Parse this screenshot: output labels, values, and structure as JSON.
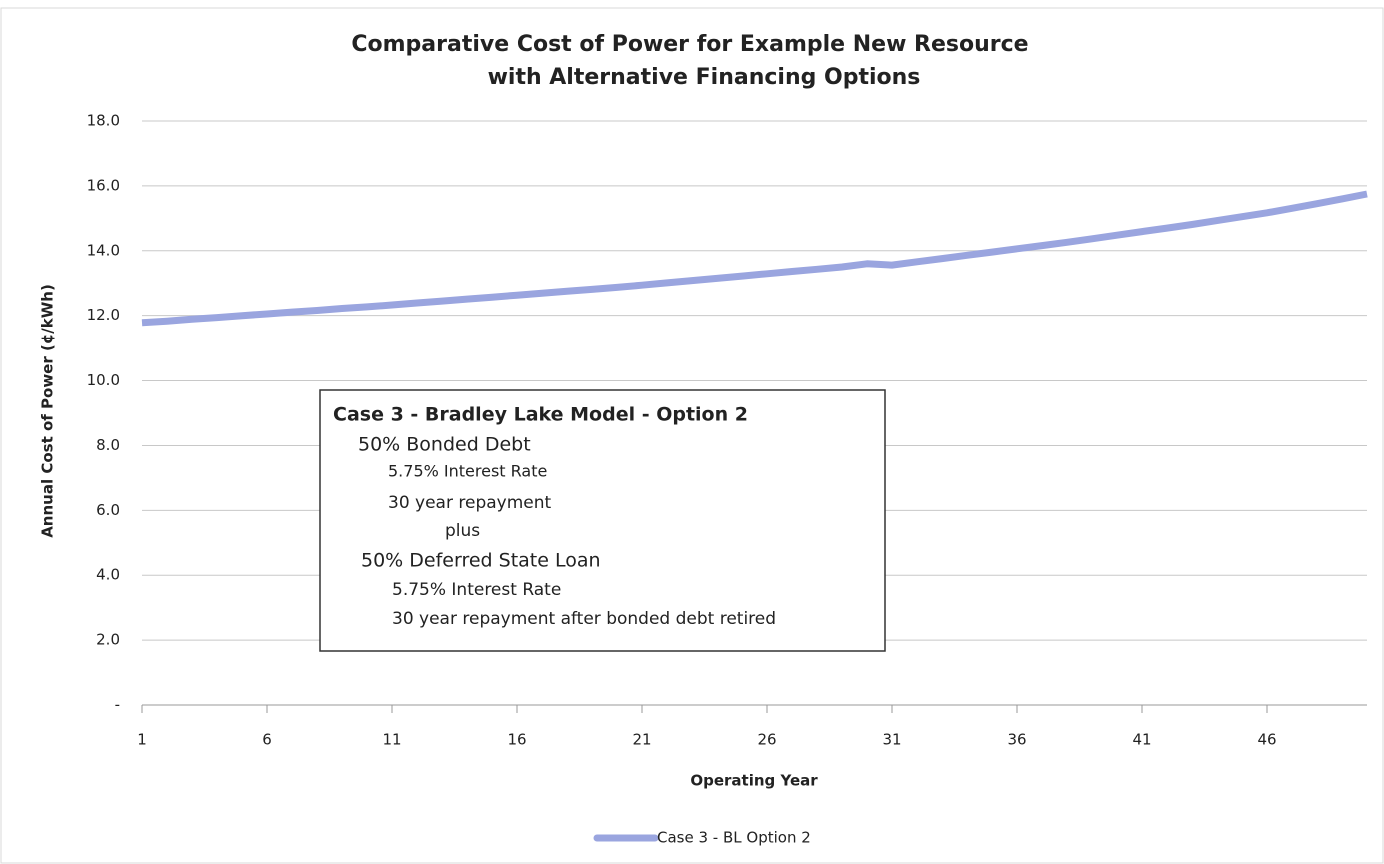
{
  "chart_data": {
    "type": "line",
    "title": [
      "Comparative Cost of Power for Example New Resource",
      "with Alternative Financing Options"
    ],
    "x_label": "Operating Year",
    "y_label": "Annual Cost of Power (¢/kWh)",
    "x": [
      1,
      2,
      3,
      4,
      5,
      6,
      7,
      8,
      9,
      10,
      11,
      12,
      13,
      14,
      15,
      16,
      17,
      18,
      19,
      20,
      21,
      22,
      23,
      24,
      25,
      26,
      27,
      28,
      29,
      30,
      31,
      32,
      33,
      34,
      35,
      36,
      37,
      38,
      39,
      40,
      41,
      42,
      43,
      44,
      45,
      46,
      47,
      48,
      49,
      50
    ],
    "xlim": [
      1,
      50
    ],
    "xticks": [
      1,
      6,
      11,
      16,
      21,
      26,
      31,
      36,
      41,
      46
    ],
    "ylim": [
      0,
      18
    ],
    "yticks": [
      {
        "value": 0,
        "label": "-"
      },
      {
        "value": 2,
        "label": "2.0"
      },
      {
        "value": 4,
        "label": "4.0"
      },
      {
        "value": 6,
        "label": "6.0"
      },
      {
        "value": 8,
        "label": "8.0"
      },
      {
        "value": 10,
        "label": "10.0"
      },
      {
        "value": 12,
        "label": "12.0"
      },
      {
        "value": 14,
        "label": "14.0"
      },
      {
        "value": 16,
        "label": "16.0"
      },
      {
        "value": 18,
        "label": "18.0"
      }
    ],
    "grid": true,
    "legend": "bottom",
    "series": [
      {
        "name": "Case 3 - BL Option 2",
        "color": "#9aa5df",
        "values": [
          11.78,
          11.83,
          11.89,
          11.94,
          12.0,
          12.05,
          12.11,
          12.16,
          12.22,
          12.27,
          12.33,
          12.39,
          12.45,
          12.51,
          12.57,
          12.63,
          12.69,
          12.75,
          12.81,
          12.87,
          12.94,
          13.01,
          13.08,
          13.15,
          13.22,
          13.29,
          13.36,
          13.43,
          13.5,
          13.6,
          13.56,
          13.66,
          13.76,
          13.86,
          13.96,
          14.06,
          14.16,
          14.26,
          14.37,
          14.48,
          14.59,
          14.7,
          14.81,
          14.93,
          15.05,
          15.17,
          15.31,
          15.45,
          15.6,
          15.75
        ]
      }
    ],
    "annotation": [
      "Case 3 - Bradley Lake Model - Option 2",
      "50% Bonded Debt",
      "5.75% Interest Rate",
      "30 year repayment",
      "plus",
      "50% Deferred State Loan",
      "5.75% Interest Rate",
      "30 year repayment after bonded debt retired"
    ]
  }
}
